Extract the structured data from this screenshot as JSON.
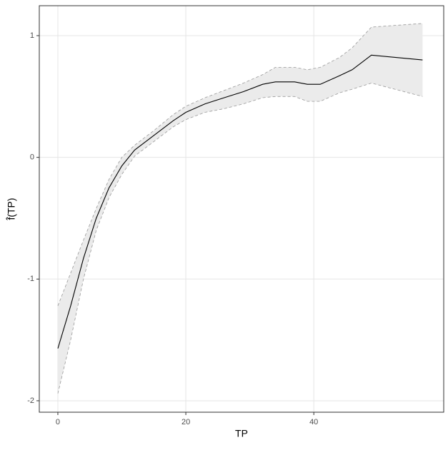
{
  "chart_data": {
    "type": "smooth-band",
    "x_label": "TP",
    "y_label": "f̂(TP)",
    "x": [
      0,
      2,
      4,
      6,
      8,
      10,
      12,
      15,
      18,
      20,
      23,
      26,
      29,
      32,
      34,
      37,
      39,
      41,
      44,
      46,
      49,
      57
    ],
    "values": [
      -1.57,
      -1.22,
      -0.83,
      -0.5,
      -0.25,
      -0.07,
      0.06,
      0.18,
      0.3,
      0.37,
      0.44,
      0.49,
      0.54,
      0.6,
      0.62,
      0.62,
      0.6,
      0.6,
      0.67,
      0.72,
      0.84,
      0.8
    ],
    "upper": [
      -1.22,
      -0.95,
      -0.68,
      -0.42,
      -0.18,
      0.0,
      0.1,
      0.22,
      0.35,
      0.42,
      0.49,
      0.55,
      0.61,
      0.68,
      0.74,
      0.74,
      0.72,
      0.74,
      0.82,
      0.9,
      1.07,
      1.1
    ],
    "lower": [
      -1.94,
      -1.5,
      -1.0,
      -0.6,
      -0.33,
      -0.14,
      0.01,
      0.13,
      0.25,
      0.31,
      0.37,
      0.4,
      0.44,
      0.49,
      0.5,
      0.5,
      0.46,
      0.46,
      0.53,
      0.56,
      0.61,
      0.5
    ],
    "color": "#000000",
    "band_color": "#ebebeb",
    "band_edge_color": "#999999",
    "xlim": [
      -2.9,
      60.3
    ],
    "ylim": [
      -2.094,
      1.246
    ],
    "xticks": [
      0,
      20,
      40
    ],
    "yticks": [
      -2,
      -1,
      0,
      1
    ],
    "grid": true
  }
}
